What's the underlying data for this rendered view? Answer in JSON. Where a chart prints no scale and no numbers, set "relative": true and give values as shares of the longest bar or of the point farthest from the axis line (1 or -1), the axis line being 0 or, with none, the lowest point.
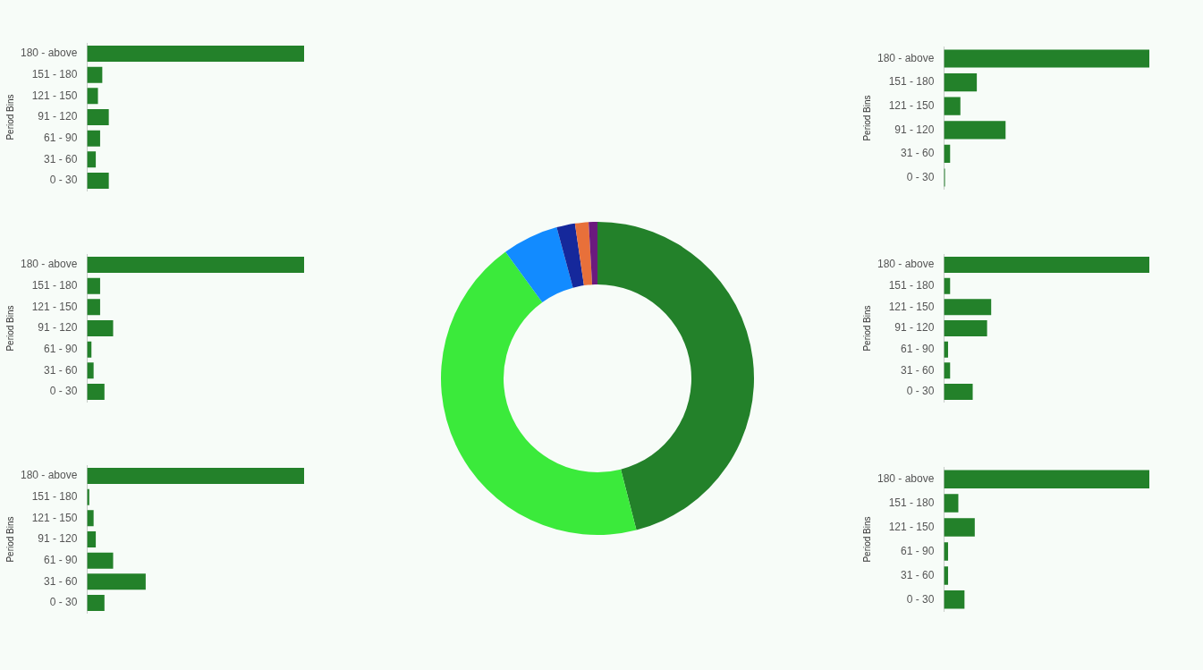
{
  "chart_data": [
    {
      "type": "bar",
      "orientation": "horizontal",
      "relative": true,
      "ylabel": "Period Bins",
      "categories": [
        "180 - above",
        "151 - 180",
        "121 - 150",
        "91 - 120",
        "61 - 90",
        "31 - 60",
        "0 - 30"
      ],
      "values": [
        1,
        0.07,
        0.05,
        0.1,
        0.06,
        0.04,
        0.1
      ],
      "color": "#23812a",
      "legend": false
    },
    {
      "type": "bar",
      "orientation": "horizontal",
      "relative": true,
      "ylabel": "Period Bins",
      "categories": [
        "180 - above",
        "151 - 180",
        "121 - 150",
        "91 - 120",
        "31 - 60",
        "0 - 30"
      ],
      "values": [
        1,
        0.16,
        0.08,
        0.3,
        0.03,
        0.005
      ],
      "color": "#23812a",
      "legend": false
    },
    {
      "type": "bar",
      "orientation": "horizontal",
      "relative": true,
      "ylabel": "Period Bins",
      "categories": [
        "180 - above",
        "151 - 180",
        "121 - 150",
        "91 - 120",
        "61 - 90",
        "31 - 60",
        "0 - 30"
      ],
      "values": [
        1,
        0.06,
        0.06,
        0.12,
        0.02,
        0.03,
        0.08
      ],
      "color": "#23812a",
      "legend": false
    },
    {
      "type": "donut",
      "categories": [
        null,
        null,
        null,
        null,
        null,
        null
      ],
      "values": [
        46,
        44,
        5.8,
        1.9,
        1.4,
        0.9
      ],
      "colors": [
        "#23812a",
        "#3bea3b",
        "#128bff",
        "#15289b",
        "#e8703a",
        "#6b1a7e"
      ],
      "legend": false
    },
    {
      "type": "bar",
      "orientation": "horizontal",
      "relative": true,
      "ylabel": "Period Bins",
      "categories": [
        "180 - above",
        "151 - 180",
        "121 - 150",
        "91 - 120",
        "61 - 90",
        "31 - 60",
        "0 - 30"
      ],
      "values": [
        1,
        0.03,
        0.23,
        0.21,
        0.02,
        0.03,
        0.14
      ],
      "color": "#23812a",
      "legend": false
    },
    {
      "type": "bar",
      "orientation": "horizontal",
      "relative": true,
      "ylabel": "Period Bins",
      "categories": [
        "180 - above",
        "151 - 180",
        "121 - 150",
        "91 - 120",
        "61 - 90",
        "31 - 60",
        "0 - 30"
      ],
      "values": [
        1,
        0.01,
        0.03,
        0.04,
        0.12,
        0.27,
        0.08
      ],
      "color": "#23812a",
      "legend": false
    },
    {
      "type": "bar",
      "orientation": "horizontal",
      "relative": true,
      "ylabel": "Period Bins",
      "categories": [
        "180 - above",
        "151 - 180",
        "121 - 150",
        "61 - 90",
        "31 - 60",
        "0 - 30"
      ],
      "values": [
        1,
        0.07,
        0.15,
        0.02,
        0.02,
        0.1
      ],
      "color": "#23812a",
      "legend": false
    }
  ]
}
